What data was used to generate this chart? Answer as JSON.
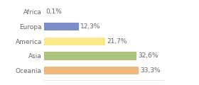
{
  "categories": [
    "Africa",
    "Europa",
    "America",
    "Asia",
    "Oceania"
  ],
  "values": [
    33.3,
    32.6,
    21.7,
    12.3,
    0.1
  ],
  "labels": [
    "33,3%",
    "32,6%",
    "21,7%",
    "12,3%",
    "0,1%"
  ],
  "bar_colors": [
    "#f0b87e",
    "#aec47e",
    "#fae88c",
    "#7b8ec8",
    "#f0b87e"
  ],
  "background_color": "#ffffff",
  "xlim": [
    0,
    42
  ],
  "bar_height": 0.55,
  "label_fontsize": 6.5,
  "tick_fontsize": 6.5,
  "text_color": "#666666",
  "grid_color": "#dddddd"
}
